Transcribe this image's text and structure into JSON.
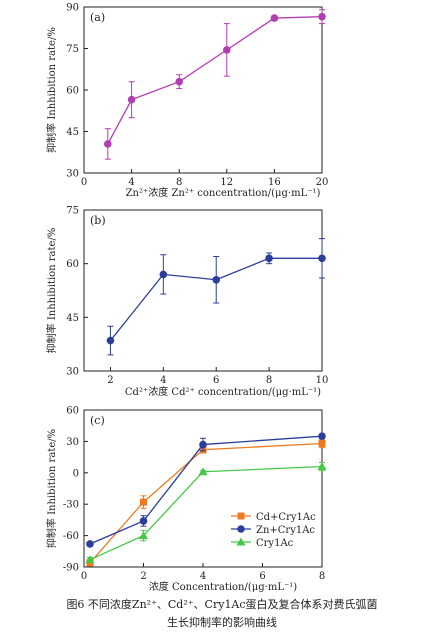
{
  "charts": [
    {
      "panel": "(a)",
      "type": "line",
      "x": [
        2,
        4,
        8,
        12,
        16,
        20
      ],
      "xlim": [
        0,
        20
      ],
      "xticks": [
        0,
        4,
        8,
        12,
        16,
        20
      ],
      "ylim": [
        30,
        90
      ],
      "yticks": [
        30,
        45,
        60,
        75,
        90
      ],
      "xlabel": "Zn²⁺浓度 Zn²⁺ concentration/(μg·mL⁻¹)",
      "ylabel": "抑制率 Inhhibition rate/%",
      "series": [
        {
          "color": "#b23cb2",
          "marker": "circle",
          "values": [
            40.5,
            56.5,
            63,
            74.5,
            86,
            86.5
          ],
          "errors": [
            5.5,
            6.5,
            2.5,
            9.5,
            0.8,
            2.5
          ]
        }
      ]
    },
    {
      "panel": "(b)",
      "type": "line",
      "x": [
        2,
        4,
        6,
        8,
        10
      ],
      "xlim": [
        1,
        10
      ],
      "xticks": [
        2,
        4,
        6,
        8,
        10
      ],
      "ylim": [
        30,
        75
      ],
      "yticks": [
        30,
        45,
        60,
        75
      ],
      "xlabel": "Cd²⁺浓度 Cd²⁺ concentration/(μg·mL⁻¹)",
      "ylabel": "抑制率 Inhhibition rate/%",
      "series": [
        {
          "color": "#2c3e9a",
          "marker": "circle",
          "values": [
            38.5,
            57,
            55.5,
            61.5,
            61.5
          ],
          "errors": [
            4,
            5.5,
            6.5,
            1.5,
            5.5
          ]
        }
      ]
    },
    {
      "panel": "(c)",
      "type": "line",
      "x": [
        0.2,
        2,
        4,
        8
      ],
      "xlim": [
        0,
        8
      ],
      "xticks": [
        0,
        2,
        4,
        6,
        8
      ],
      "ylim": [
        -90,
        60
      ],
      "yticks": [
        -90,
        -60,
        -30,
        0,
        30,
        60
      ],
      "xlabel": "浓度 Concentration/(μg·mL⁻¹)",
      "ylabel": "抑制率 Inhibition rate/%",
      "legend_position": "bottom-right",
      "series": [
        {
          "name": "Cd+Cry1Ac",
          "color": "#f07a20",
          "marker": "square",
          "values": [
            -86,
            -28,
            22,
            28
          ],
          "errors": [
            3,
            6,
            3,
            4
          ]
        },
        {
          "name": "Zn+Cry1Ac",
          "color": "#2c3e9a",
          "marker": "circle",
          "values": [
            -68,
            -46,
            27,
            35
          ],
          "errors": [
            2,
            5,
            6,
            2
          ]
        },
        {
          "name": "Cry1Ac",
          "color": "#46c846",
          "marker": "triangle",
          "values": [
            -83,
            -60,
            1,
            6
          ],
          "errors": [
            2,
            5,
            1,
            4
          ]
        }
      ]
    }
  ],
  "caption_line1": "图6  不同浓度Zn²⁺、Cd²⁺、Cry1Ac蛋白及复合体系对费氏弧菌",
  "caption_line2": "生长抑制率的影响曲线"
}
